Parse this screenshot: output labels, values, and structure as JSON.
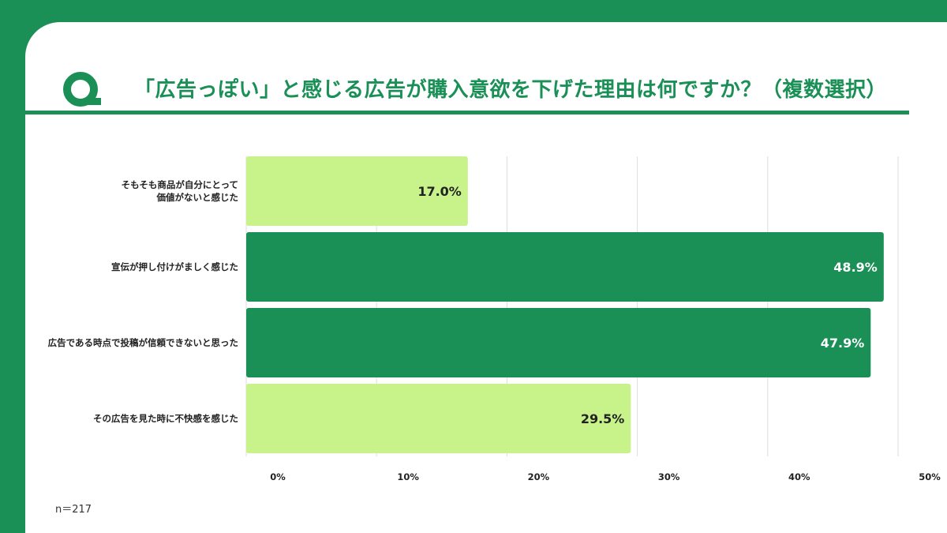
{
  "title": "「広告っぽい」と感じる広告が購入意欲を下げた理由は何ですか？（複数選択）",
  "note": "n＝217",
  "icons": {
    "logo": "q-logo-icon"
  },
  "colors": {
    "background": "#1a8f56",
    "dark_bar": "#1a8f56",
    "light_bar": "#c8f28a",
    "grid": "#dddddd"
  },
  "chart_data": {
    "type": "bar",
    "orientation": "horizontal",
    "categories": [
      [
        "そもそも商品が自分にとって",
        "価値がないと感じた"
      ],
      [
        "宣伝が押し付けがましく感じた"
      ],
      [
        "広告である時点で投稿が信頼できないと思った"
      ],
      [
        "その広告を見た時に不快感を感じた"
      ]
    ],
    "values": [
      17.0,
      48.9,
      47.9,
      29.5
    ],
    "value_labels": [
      "17.0%",
      "48.9%",
      "47.9%",
      "29.5%"
    ],
    "bar_colors": [
      "#c8f28a",
      "#1a8f56",
      "#1a8f56",
      "#c8f28a"
    ],
    "xlim": [
      0,
      50
    ],
    "xticks": [
      0,
      10,
      20,
      30,
      40,
      50
    ],
    "xtick_labels": [
      "0%",
      "10%",
      "20%",
      "30%",
      "40%",
      "50%"
    ],
    "grid": true,
    "legend": "none"
  }
}
